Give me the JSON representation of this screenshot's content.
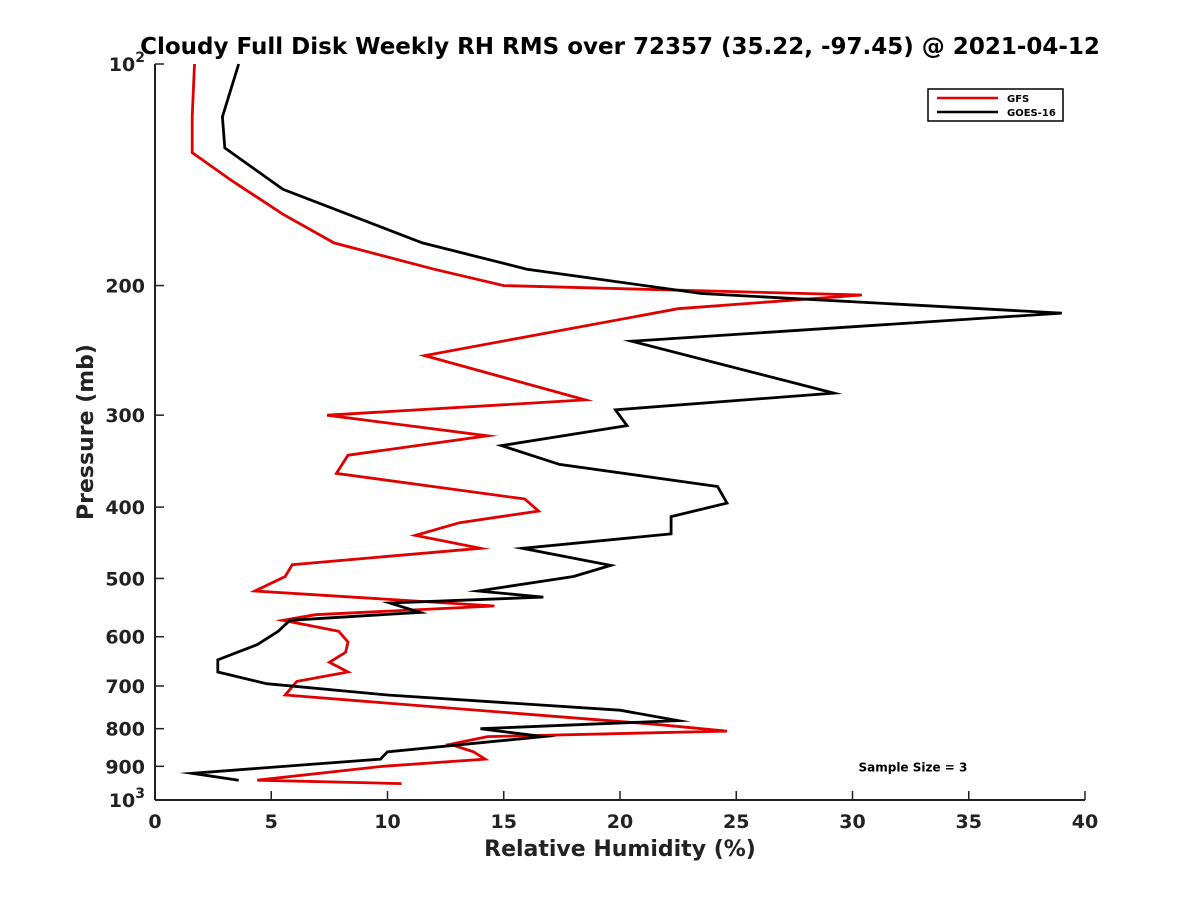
{
  "chart_data": {
    "type": "line",
    "title": "Cloudy Full Disk Weekly RH RMS over 72357 (35.22, -97.45) @ 2021-04-12",
    "xlabel": "Relative Humidity (%)",
    "ylabel": "Pressure (mb)",
    "xlim": [
      0,
      40
    ],
    "ylim": [
      100,
      1000
    ],
    "yscale": "log",
    "y_reversed": true,
    "grid": false,
    "legend_position": "top-right",
    "x_ticks": [
      0,
      5,
      10,
      15,
      20,
      25,
      30,
      35,
      40
    ],
    "x_tick_labels": [
      "0",
      "5",
      "10",
      "15",
      "20",
      "25",
      "30",
      "35",
      "40"
    ],
    "y_ticks": [
      100,
      200,
      300,
      400,
      500,
      600,
      700,
      800,
      900,
      1000
    ],
    "y_tick_labels": [
      {
        "base": "10",
        "exp": "2"
      },
      {
        "base": "200",
        "exp": ""
      },
      {
        "base": "300",
        "exp": ""
      },
      {
        "base": "400",
        "exp": ""
      },
      {
        "base": "500",
        "exp": ""
      },
      {
        "base": "600",
        "exp": ""
      },
      {
        "base": "700",
        "exp": ""
      },
      {
        "base": "800",
        "exp": ""
      },
      {
        "base": "900",
        "exp": ""
      },
      {
        "base": "10",
        "exp": "3"
      }
    ],
    "series": [
      {
        "name": "GFS",
        "color": "#e00000",
        "x": [
          1.7,
          1.6,
          1.6,
          3.3,
          5.5,
          7.7,
          12.0,
          15.0,
          30.4,
          22.5,
          11.6,
          18.5,
          7.4,
          14.3,
          8.3,
          7.8,
          15.9,
          16.5,
          13.1,
          11.2,
          14.0,
          5.9,
          5.6,
          4.3,
          14.6,
          6.9,
          5.5,
          7.9,
          8.3,
          8.2,
          7.5,
          8.3,
          6.1,
          5.6,
          21.7,
          24.6,
          14.3,
          12.7,
          13.7,
          14.2,
          9.8,
          4.4,
          10.6
        ],
        "y": [
          100,
          118,
          132,
          144,
          160,
          175,
          190,
          200,
          206,
          215,
          249,
          286,
          300,
          320,
          340,
          360,
          390,
          405,
          420,
          437,
          455,
          479,
          497,
          520,
          545,
          560,
          570,
          590,
          610,
          630,
          650,
          670,
          690,
          720,
          790,
          806,
          820,
          840,
          860,
          880,
          900,
          940,
          950
        ]
      },
      {
        "name": "GOES-16",
        "color": "#000000",
        "x": [
          3.6,
          2.9,
          3.0,
          5.5,
          11.5,
          16.0,
          23.5,
          39.0,
          20.5,
          29.2,
          19.8,
          20.3,
          14.9,
          17.4,
          24.2,
          24.6,
          22.2,
          22.2,
          15.8,
          19.6,
          18.0,
          13.9,
          16.7,
          10.1,
          11.4,
          5.8,
          5.3,
          4.4,
          2.7,
          2.7,
          4.8,
          10.0,
          20.0,
          22.5,
          14.0,
          16.7,
          10.0,
          9.7,
          1.6,
          3.6
        ],
        "y": [
          100,
          118,
          130,
          148,
          175,
          190,
          205,
          218,
          238,
          280,
          295,
          310,
          330,
          350,
          375,
          395,
          412,
          435,
          455,
          480,
          497,
          520,
          530,
          540,
          556,
          570,
          590,
          615,
          645,
          670,
          695,
          720,
          755,
          780,
          800,
          820,
          860,
          880,
          920,
          940
        ]
      }
    ],
    "annotations": [
      {
        "text": "Sample Size = 3",
        "x": 32.6,
        "y": 900
      }
    ]
  }
}
